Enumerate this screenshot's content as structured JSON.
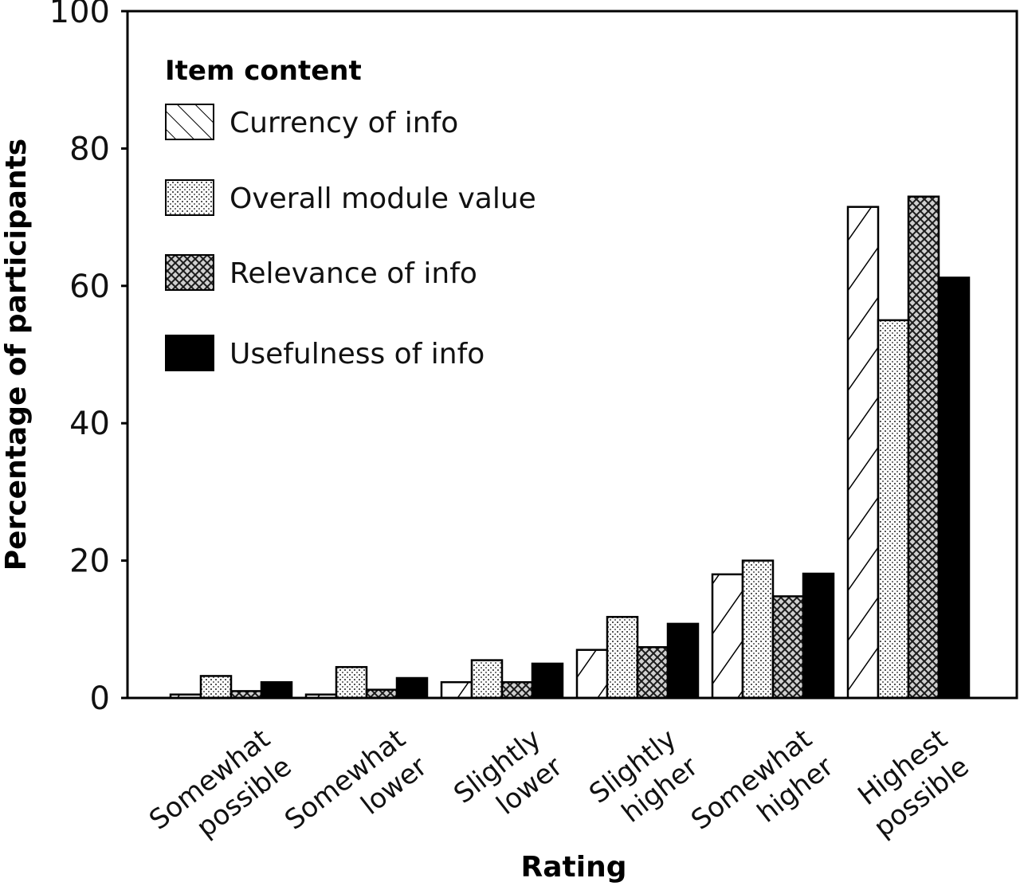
{
  "chart_data": {
    "type": "bar",
    "xlabel": "Rating",
    "ylabel": "Percentage of participants",
    "ylim": [
      0,
      100
    ],
    "yticks": [
      0,
      20,
      40,
      60,
      80,
      100
    ],
    "categories": [
      [
        "Somewhat",
        "possible"
      ],
      [
        "Somewhat",
        "lower"
      ],
      [
        "Slightly",
        "lower"
      ],
      [
        "Slightly",
        "higher"
      ],
      [
        "Somewhat",
        "higher"
      ],
      [
        "Highest",
        "possible"
      ]
    ],
    "legend": {
      "title": "Item content",
      "position": "top-left"
    },
    "series": [
      {
        "name": "Currency of info",
        "pattern": "diagonal-hatch",
        "values": [
          0.5,
          0.5,
          2.3,
          7,
          18,
          71.5
        ]
      },
      {
        "name": "Overall module value",
        "pattern": "fine-dots",
        "values": [
          3.2,
          4.5,
          5.5,
          11.8,
          20,
          55
        ]
      },
      {
        "name": "Relevance of info",
        "pattern": "crosshatch",
        "values": [
          1,
          1.2,
          2.3,
          7.4,
          14.8,
          73
        ]
      },
      {
        "name": "Usefulness of info",
        "pattern": "solid-black",
        "values": [
          2.3,
          2.9,
          5,
          10.8,
          18.1,
          61.2
        ]
      }
    ]
  }
}
